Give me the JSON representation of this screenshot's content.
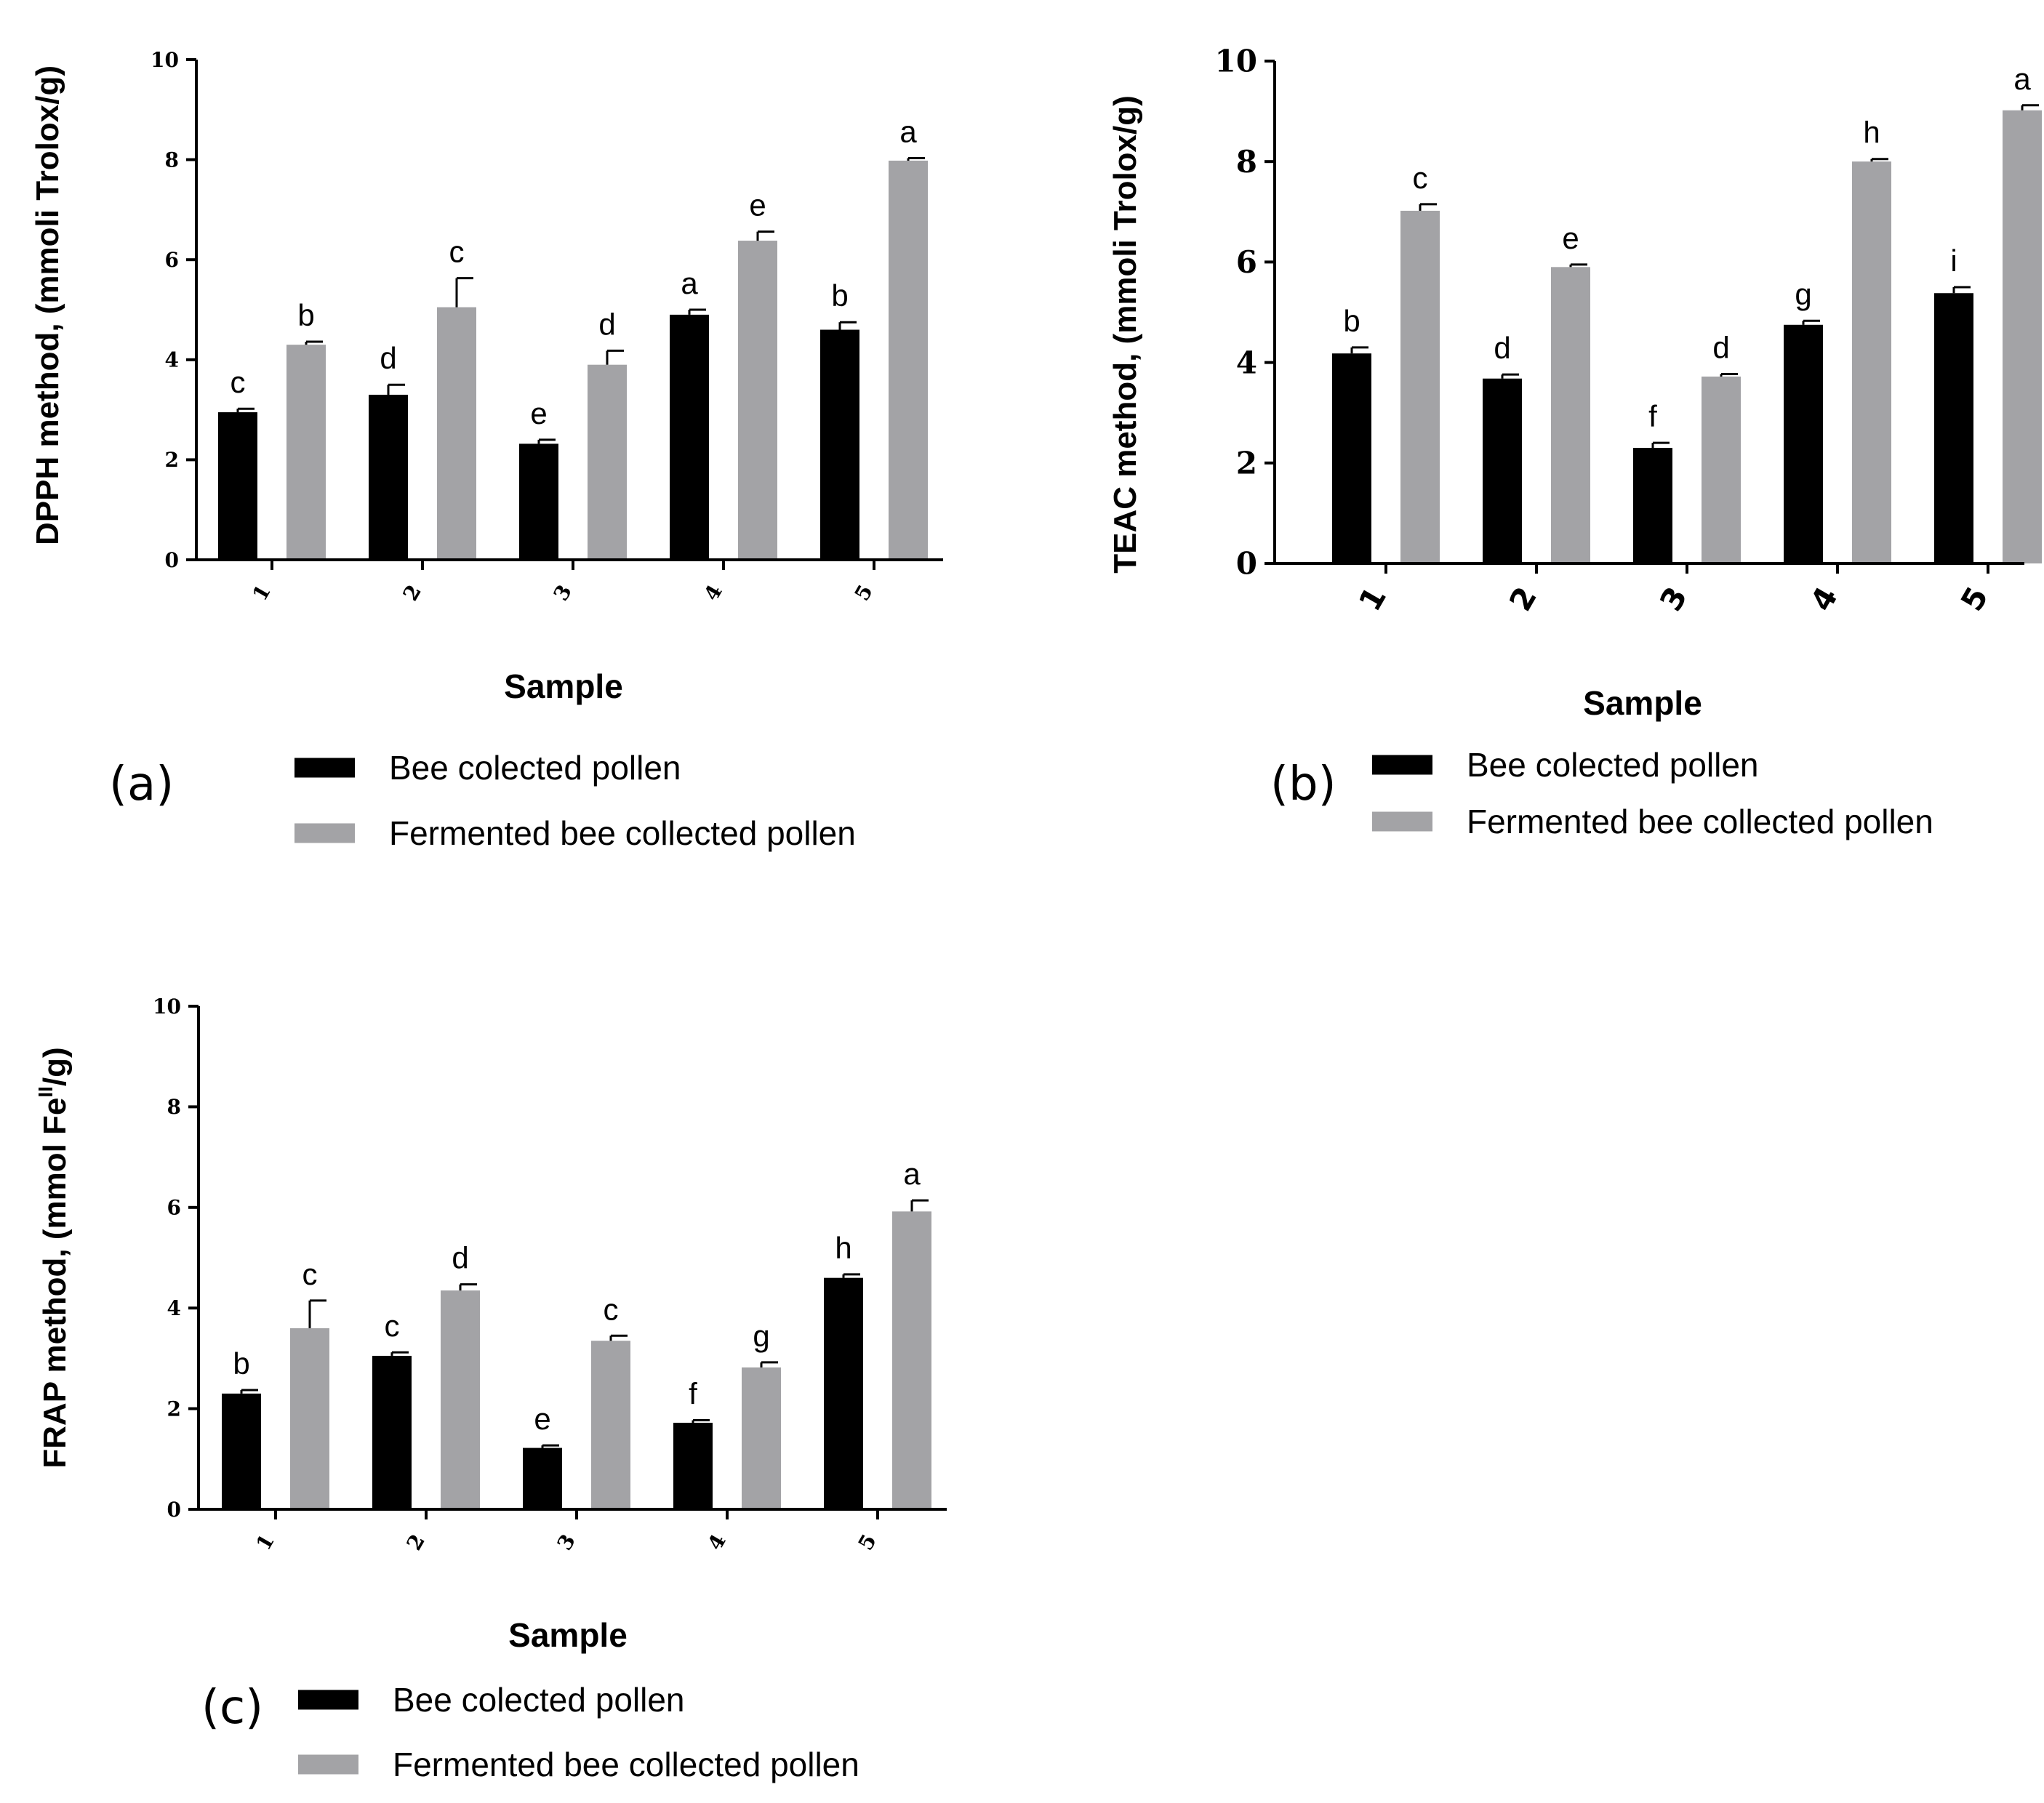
{
  "colors": {
    "series1": "#000000",
    "series2": "#a3a3a6",
    "axis": "#000000"
  },
  "chart_data": [
    {
      "type": "bar",
      "panel_label": "(a)",
      "categories": [
        "1",
        "2",
        "3",
        "4",
        "5"
      ],
      "xlabel": "Sample",
      "ylabel": "DPPH method, (mmoli Trolox/g)",
      "ylim": [
        0,
        10
      ],
      "yticks": [
        "0",
        "2",
        "4",
        "6",
        "8",
        "10"
      ],
      "legend_position": "bottom",
      "series": [
        {
          "name": "Bee colected pollen",
          "values": [
            2.95,
            3.3,
            2.32,
            4.9,
            4.6
          ],
          "errors": [
            0.07,
            0.2,
            0.08,
            0.1,
            0.15
          ],
          "letters": [
            "c",
            "d",
            "e",
            "a",
            "b"
          ]
        },
        {
          "name": "Fermented bee collected pollen",
          "values": [
            4.3,
            5.05,
            3.9,
            6.38,
            7.98
          ],
          "errors": [
            0.06,
            0.58,
            0.28,
            0.18,
            0.05
          ],
          "letters": [
            "b",
            "c",
            "d",
            "e",
            "a"
          ]
        }
      ]
    },
    {
      "type": "bar",
      "panel_label": "(b)",
      "categories": [
        "1",
        "2",
        "3",
        "4",
        "5"
      ],
      "xlabel": "Sample",
      "ylabel": "TEAC method, (mmoli Trolox/g)",
      "ylim": [
        0,
        10
      ],
      "yticks": [
        "0",
        "2",
        "4",
        "6",
        "8",
        "10"
      ],
      "legend_position": "bottom",
      "series": [
        {
          "name": "Bee colected pollen",
          "values": [
            4.18,
            3.68,
            2.3,
            4.75,
            5.38
          ],
          "errors": [
            0.12,
            0.08,
            0.1,
            0.08,
            0.12
          ],
          "letters": [
            "b",
            "d",
            "f",
            "g",
            "i"
          ]
        },
        {
          "name": "Fermented bee collected pollen",
          "values": [
            7.02,
            5.9,
            3.72,
            8.0,
            9.02
          ],
          "errors": [
            0.13,
            0.05,
            0.05,
            0.05,
            0.1
          ],
          "letters": [
            "c",
            "e",
            "d",
            "h",
            "a"
          ]
        }
      ]
    },
    {
      "type": "bar",
      "panel_label": "(c)",
      "categories": [
        "1",
        "2",
        "3",
        "4",
        "5"
      ],
      "xlabel": "Sample",
      "ylabel_main": "FRAP method, (mmol Fe",
      "ylabel_sup": "II",
      "ylabel_tail": "/g)",
      "ylim": [
        0,
        10
      ],
      "yticks": [
        "0",
        "2",
        "4",
        "6",
        "8",
        "10"
      ],
      "legend_position": "bottom",
      "series": [
        {
          "name": "Bee colected pollen",
          "values": [
            2.3,
            3.05,
            1.22,
            1.72,
            4.6
          ],
          "errors": [
            0.07,
            0.07,
            0.05,
            0.05,
            0.07
          ],
          "letters": [
            "b",
            "c",
            "e",
            "f",
            "h"
          ]
        },
        {
          "name": "Fermented bee collected pollen",
          "values": [
            3.6,
            4.35,
            3.35,
            2.82,
            5.92
          ],
          "errors": [
            0.55,
            0.12,
            0.1,
            0.1,
            0.22
          ],
          "letters": [
            "c",
            "d",
            "c",
            "g",
            "a"
          ]
        }
      ]
    }
  ]
}
